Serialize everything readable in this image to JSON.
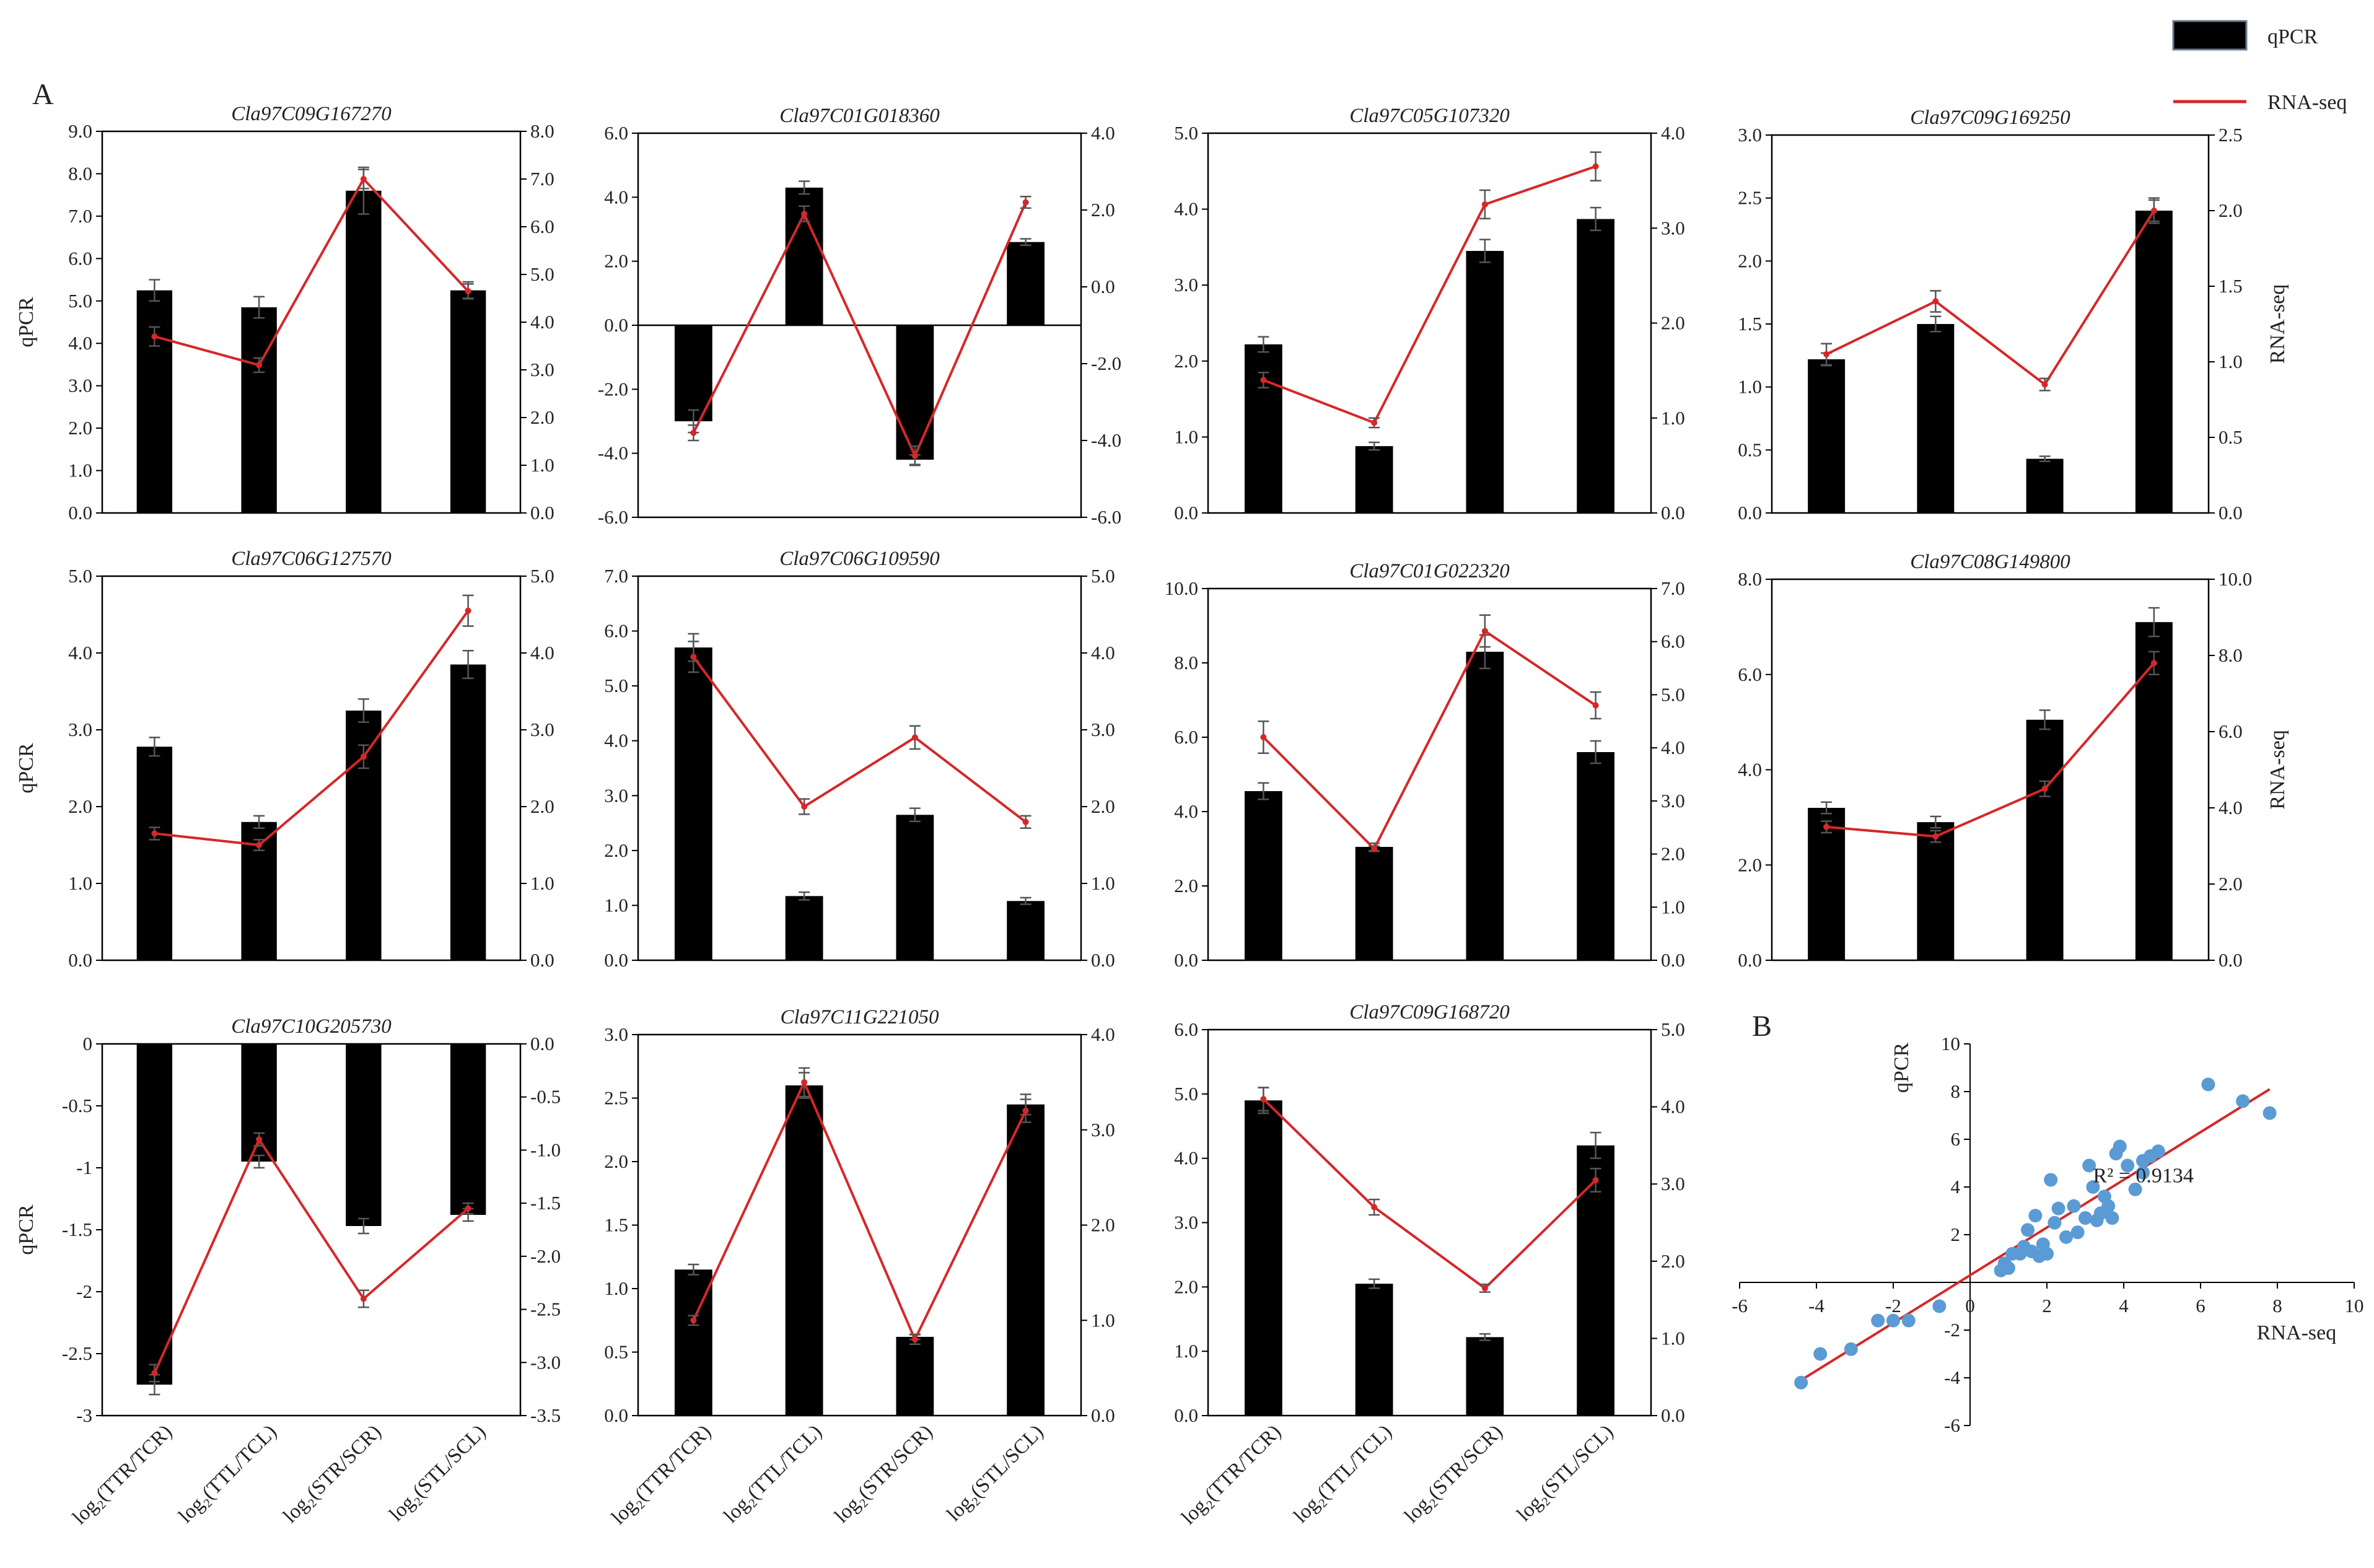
{
  "figure": {
    "panel_a_label": "A",
    "panel_b_label": "B",
    "legend": {
      "bar_label": "qPCR",
      "line_label": "RNA-seq"
    },
    "colors": {
      "bar": "#000000",
      "line": "#d62728",
      "scatter": "#5b9bd5",
      "fit": "#d62728"
    },
    "category_labels": [
      "log₂(TTR/TCR)",
      "log₂(TTL/TCL)",
      "log₂(STR/SCR)",
      "log₂(STL/SCL)"
    ]
  },
  "chart_data": [
    {
      "type": "bar-line",
      "title": "Cla97C09G167270",
      "ylabel_left": "qPCR",
      "ylabel_right": "",
      "left_ticks": [
        "0.0",
        "1.0",
        "2.0",
        "3.0",
        "4.0",
        "5.0",
        "6.0",
        "7.0",
        "8.0",
        "9.0"
      ],
      "ylim_left": [
        0,
        9
      ],
      "right_ticks": [
        "0.0",
        "1.0",
        "2.0",
        "3.0",
        "4.0",
        "5.0",
        "6.0",
        "7.0",
        "8.0"
      ],
      "ylim_right": [
        0,
        8
      ],
      "qpcr": [
        5.25,
        4.85,
        7.6,
        5.25
      ],
      "qpcr_err": [
        0.25,
        0.25,
        0.55,
        0.2
      ],
      "rnaseq": [
        3.7,
        3.1,
        7.0,
        4.65
      ],
      "rnaseq_err": [
        0.2,
        0.15,
        0.2,
        0.15
      ]
    },
    {
      "type": "bar-line",
      "title": "Cla97C01G018360",
      "ylabel_left": "",
      "ylabel_right": "",
      "left_ticks": [
        "-6.0",
        "-4.0",
        "-2.0",
        "0.0",
        "2.0",
        "4.0",
        "6.0"
      ],
      "ylim_left": [
        -6,
        6
      ],
      "right_ticks": [
        "-6.0",
        "-4.0",
        "-2.0",
        "0.0",
        "2.0",
        "4.0"
      ],
      "ylim_right": [
        -6,
        4
      ],
      "qpcr": [
        -3.0,
        4.3,
        -4.2,
        2.6
      ],
      "qpcr_err": [
        0.35,
        0.2,
        0.15,
        0.1
      ],
      "rnaseq": [
        -3.8,
        1.9,
        -4.4,
        2.2
      ],
      "rnaseq_err": [
        0.2,
        0.2,
        0.25,
        0.15
      ]
    },
    {
      "type": "bar-line",
      "title": "Cla97C05G107320",
      "ylabel_left": "",
      "ylabel_right": "",
      "left_ticks": [
        "0.0",
        "1.0",
        "2.0",
        "3.0",
        "4.0",
        "5.0"
      ],
      "ylim_left": [
        0,
        5
      ],
      "right_ticks": [
        "0.0",
        "1.0",
        "2.0",
        "3.0",
        "4.0"
      ],
      "ylim_right": [
        0,
        4
      ],
      "qpcr": [
        2.22,
        0.88,
        3.45,
        3.87
      ],
      "qpcr_err": [
        0.1,
        0.05,
        0.15,
        0.15
      ],
      "rnaseq": [
        1.4,
        0.95,
        3.25,
        3.65
      ],
      "rnaseq_err": [
        0.08,
        0.05,
        0.15,
        0.15
      ]
    },
    {
      "type": "bar-line",
      "title": "Cla97C09G169250",
      "ylabel_left": "",
      "ylabel_right": "RNA-seq",
      "left_ticks": [
        "0.0",
        "0.5",
        "1.0",
        "1.5",
        "2.0",
        "2.5",
        "3.0"
      ],
      "ylim_left": [
        0,
        3
      ],
      "right_ticks": [
        "0.0",
        "0.5",
        "1.0",
        "1.5",
        "2.0",
        "2.5"
      ],
      "ylim_right": [
        0,
        2.5
      ],
      "qpcr": [
        1.22,
        1.5,
        0.43,
        2.4
      ],
      "qpcr_err": [
        0.05,
        0.06,
        0.02,
        0.1
      ],
      "rnaseq": [
        1.05,
        1.4,
        0.85,
        2.0
      ],
      "rnaseq_err": [
        0.07,
        0.07,
        0.04,
        0.07
      ]
    },
    {
      "type": "bar-line",
      "title": "Cla97C06G127570",
      "ylabel_left": "qPCR",
      "ylabel_right": "",
      "left_ticks": [
        "0.0",
        "1.0",
        "2.0",
        "3.0",
        "4.0",
        "5.0"
      ],
      "ylim_left": [
        0,
        5
      ],
      "right_ticks": [
        "0.0",
        "1.0",
        "2.0",
        "3.0",
        "4.0",
        "5.0"
      ],
      "ylim_right": [
        0,
        5
      ],
      "qpcr": [
        2.78,
        1.8,
        3.25,
        3.85
      ],
      "qpcr_err": [
        0.12,
        0.08,
        0.15,
        0.18
      ],
      "rnaseq": [
        1.65,
        1.5,
        2.65,
        4.55
      ],
      "rnaseq_err": [
        0.08,
        0.07,
        0.15,
        0.2
      ]
    },
    {
      "type": "bar-line",
      "title": "Cla97C06G109590",
      "ylabel_left": "",
      "ylabel_right": "",
      "left_ticks": [
        "0.0",
        "1.0",
        "2.0",
        "3.0",
        "4.0",
        "5.0",
        "6.0",
        "7.0"
      ],
      "ylim_left": [
        0,
        7
      ],
      "right_ticks": [
        "0.0",
        "1.0",
        "2.0",
        "3.0",
        "4.0",
        "5.0"
      ],
      "ylim_right": [
        0,
        5
      ],
      "qpcr": [
        5.7,
        1.17,
        2.65,
        1.08
      ],
      "qpcr_err": [
        0.25,
        0.07,
        0.12,
        0.06
      ],
      "rnaseq": [
        3.95,
        2.0,
        2.9,
        1.8
      ],
      "rnaseq_err": [
        0.2,
        0.1,
        0.15,
        0.08
      ]
    },
    {
      "type": "bar-line",
      "title": "Cla97C01G022320",
      "ylabel_left": "",
      "ylabel_right": "",
      "left_ticks": [
        "0.0",
        "2.0",
        "4.0",
        "6.0",
        "8.0",
        "10.0"
      ],
      "ylim_left": [
        0,
        10
      ],
      "right_ticks": [
        "0.0",
        "1.0",
        "2.0",
        "3.0",
        "4.0",
        "5.0",
        "6.0",
        "7.0"
      ],
      "ylim_right": [
        0,
        7
      ],
      "qpcr": [
        4.55,
        3.05,
        8.3,
        5.6
      ],
      "qpcr_err": [
        0.22,
        0.1,
        0.45,
        0.3
      ],
      "rnaseq": [
        4.2,
        2.1,
        6.2,
        4.8
      ],
      "rnaseq_err": [
        0.3,
        0.05,
        0.3,
        0.25
      ]
    },
    {
      "type": "bar-line",
      "title": "Cla97C08G149800",
      "ylabel_left": "",
      "ylabel_right": "RNA-seq",
      "left_ticks": [
        "0.0",
        "2.0",
        "4.0",
        "6.0",
        "8.0"
      ],
      "ylim_left": [
        0,
        8
      ],
      "right_ticks": [
        "0.0",
        "2.0",
        "4.0",
        "6.0",
        "8.0",
        "10.0"
      ],
      "ylim_right": [
        0,
        10
      ],
      "qpcr": [
        3.2,
        2.9,
        5.05,
        7.1
      ],
      "qpcr_err": [
        0.12,
        0.12,
        0.2,
        0.3
      ],
      "rnaseq": [
        3.5,
        3.25,
        4.5,
        7.8
      ],
      "rnaseq_err": [
        0.15,
        0.15,
        0.2,
        0.3
      ]
    },
    {
      "type": "bar-line",
      "title": "Cla97C10G205730",
      "ylabel_left": "qPCR",
      "ylabel_right": "",
      "left_ticks": [
        "-3",
        "-2.5",
        "-2",
        "-1.5",
        "-1",
        "-0.5",
        "0"
      ],
      "ylim_left": [
        -3,
        0
      ],
      "right_ticks": [
        "-3.5",
        "-3.0",
        "-2.5",
        "-2.0",
        "-1.5",
        "-1.0",
        "-0.5",
        "0.0"
      ],
      "ylim_right": [
        -3.5,
        0
      ],
      "qpcr": [
        -2.75,
        -0.95,
        -1.47,
        -1.38
      ],
      "qpcr_err": [
        0.08,
        0.05,
        0.06,
        0.05
      ],
      "rnaseq": [
        -3.1,
        -0.9,
        -2.4,
        -1.55
      ],
      "rnaseq_err": [
        0.08,
        0.06,
        0.08,
        0.05
      ]
    },
    {
      "type": "bar-line",
      "title": "Cla97C11G221050",
      "ylabel_left": "",
      "ylabel_right": "",
      "left_ticks": [
        "0.0",
        "0.5",
        "1.0",
        "1.5",
        "2.0",
        "2.5",
        "3.0"
      ],
      "ylim_left": [
        0,
        3
      ],
      "right_ticks": [
        "0.0",
        "1.0",
        "2.0",
        "3.0",
        "4.0"
      ],
      "ylim_right": [
        0,
        4
      ],
      "qpcr": [
        1.15,
        2.6,
        0.62,
        2.45
      ],
      "qpcr_err": [
        0.04,
        0.1,
        0.02,
        0.08
      ],
      "rnaseq": [
        1.0,
        3.5,
        0.8,
        3.2
      ],
      "rnaseq_err": [
        0.05,
        0.15,
        0.05,
        0.12
      ]
    },
    {
      "type": "bar-line",
      "title": "Cla97C09G168720",
      "ylabel_left": "",
      "ylabel_right": "",
      "left_ticks": [
        "0.0",
        "1.0",
        "2.0",
        "3.0",
        "4.0",
        "5.0",
        "6.0"
      ],
      "ylim_left": [
        0,
        6
      ],
      "right_ticks": [
        "0.0",
        "1.0",
        "2.0",
        "3.0",
        "4.0",
        "5.0"
      ],
      "ylim_right": [
        0,
        5
      ],
      "qpcr": [
        4.9,
        2.05,
        1.22,
        4.2
      ],
      "qpcr_err": [
        0.2,
        0.07,
        0.05,
        0.2
      ],
      "rnaseq": [
        4.1,
        2.7,
        1.65,
        3.05
      ],
      "rnaseq_err": [
        0.15,
        0.1,
        0.05,
        0.15
      ]
    },
    {
      "type": "scatter",
      "title": "",
      "xlabel": "RNA-seq",
      "ylabel": "qPCR",
      "x_ticks": [
        "-6",
        "-4",
        "-2",
        "0",
        "2",
        "4",
        "6",
        "8",
        "10"
      ],
      "xlim": [
        -6,
        10
      ],
      "y_ticks": [
        "-6",
        "-4",
        "-2",
        "0",
        "2",
        "4",
        "6",
        "8",
        "10"
      ],
      "ylim": [
        -6,
        10
      ],
      "annotation": "R² = 0.9134",
      "fit": {
        "slope": 1.0,
        "intercept": 0.3
      },
      "points": [
        [
          -4.4,
          -4.2
        ],
        [
          -3.9,
          -3.0
        ],
        [
          -3.1,
          -2.8
        ],
        [
          -2.4,
          -1.6
        ],
        [
          -2.0,
          -1.6
        ],
        [
          -1.6,
          -1.6
        ],
        [
          -0.8,
          -1.0
        ],
        [
          0.8,
          0.5
        ],
        [
          0.9,
          0.8
        ],
        [
          1.0,
          0.6
        ],
        [
          1.1,
          1.2
        ],
        [
          1.3,
          1.2
        ],
        [
          1.4,
          1.5
        ],
        [
          1.5,
          2.2
        ],
        [
          1.6,
          1.3
        ],
        [
          1.7,
          2.8
        ],
        [
          1.8,
          1.1
        ],
        [
          1.9,
          1.6
        ],
        [
          2.0,
          1.2
        ],
        [
          2.1,
          4.3
        ],
        [
          2.2,
          2.5
        ],
        [
          2.3,
          3.1
        ],
        [
          2.5,
          1.9
        ],
        [
          2.7,
          3.2
        ],
        [
          2.8,
          2.1
        ],
        [
          3.0,
          2.7
        ],
        [
          3.1,
          4.9
        ],
        [
          3.2,
          4.0
        ],
        [
          3.3,
          2.6
        ],
        [
          3.4,
          2.9
        ],
        [
          3.5,
          3.6
        ],
        [
          3.6,
          3.2
        ],
        [
          3.7,
          2.7
        ],
        [
          3.8,
          5.4
        ],
        [
          3.9,
          5.7
        ],
        [
          4.1,
          4.9
        ],
        [
          4.3,
          3.9
        ],
        [
          4.5,
          4.6
        ],
        [
          4.5,
          5.1
        ],
        [
          4.7,
          5.3
        ],
        [
          4.9,
          5.5
        ],
        [
          6.2,
          8.3
        ],
        [
          7.1,
          7.6
        ],
        [
          7.8,
          7.1
        ]
      ]
    }
  ]
}
